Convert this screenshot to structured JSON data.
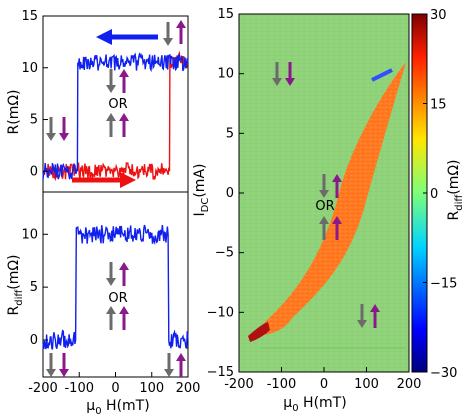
{
  "colors": {
    "red": "#ee1111",
    "blue": "#1020ee",
    "arrow_gray": "#6b6b6b",
    "arrow_purple": "#8a1a8a",
    "map_bg": "#8fd27a"
  },
  "chart_data": [
    {
      "type": "line",
      "ylabel": "R(mΩ)",
      "xlim": [
        -200,
        200
      ],
      "ylim": [
        -2,
        15
      ],
      "yticks": [
        "15",
        "10",
        "5",
        "0"
      ],
      "series": [
        {
          "color": "#1020ee",
          "x": [
            -200,
            -150,
            -105,
            -104,
            -50,
            0,
            50,
            100,
            150,
            200
          ],
          "values": [
            0,
            0,
            0,
            10.5,
            10.5,
            10.5,
            10.5,
            10.5,
            10.5,
            10.5
          ]
        },
        {
          "color": "#ee1111",
          "x": [
            -200,
            -150,
            -100,
            -50,
            0,
            50,
            100,
            149,
            150,
            200
          ],
          "values": [
            0,
            0,
            0,
            0,
            0,
            0,
            0,
            0,
            10.7,
            10.7
          ]
        }
      ],
      "annotations": [
        "OR"
      ]
    },
    {
      "type": "line",
      "ylabel": "Rdiff(mΩ)",
      "xlabel": "μ0 H(mT)",
      "xlim": [
        -200,
        200
      ],
      "ylim": [
        -3.5,
        14
      ],
      "xticks": [
        "-200",
        "-100",
        "0",
        "100",
        "200"
      ],
      "yticks": [
        "10",
        "5",
        "0"
      ],
      "series": [
        {
          "color": "#1020ee",
          "x": [
            -200,
            -150,
            -110,
            -108,
            -50,
            0,
            50,
            100,
            145,
            147,
            200
          ],
          "values": [
            0,
            0,
            0,
            10,
            10,
            10,
            10,
            10,
            10,
            0,
            0
          ]
        }
      ],
      "annotations": [
        "OR"
      ]
    },
    {
      "type": "heatmap",
      "ylabel": "IDC(mA)",
      "xlabel": "μ0 H(mT)",
      "colorbar_label": "Rdiff(mΩ)",
      "xlim": [
        -200,
        200
      ],
      "ylim": [
        -15,
        15
      ],
      "clim": [
        -30,
        30
      ],
      "xticks": [
        "-200",
        "-100",
        "0",
        "100",
        "200"
      ],
      "yticks": [
        "15",
        "10",
        "5",
        "0",
        "−5",
        "−10",
        "−15"
      ],
      "cbar_ticks": [
        "30",
        "15",
        "0",
        "−15",
        "−30"
      ],
      "annotations": [
        "OR"
      ]
    }
  ],
  "labels": {
    "r_axis": "R(mΩ)",
    "rdiff_axis_main": "R",
    "rdiff_axis_sub": "diff",
    "rdiff_axis_tail": "(mΩ)",
    "h_axis_mu": "μ",
    "h_axis_sub": "0",
    "h_axis_tail": " H(mT)",
    "idc_main": "I",
    "idc_sub": "DC",
    "idc_tail": "(mA)",
    "or_text": "OR"
  }
}
